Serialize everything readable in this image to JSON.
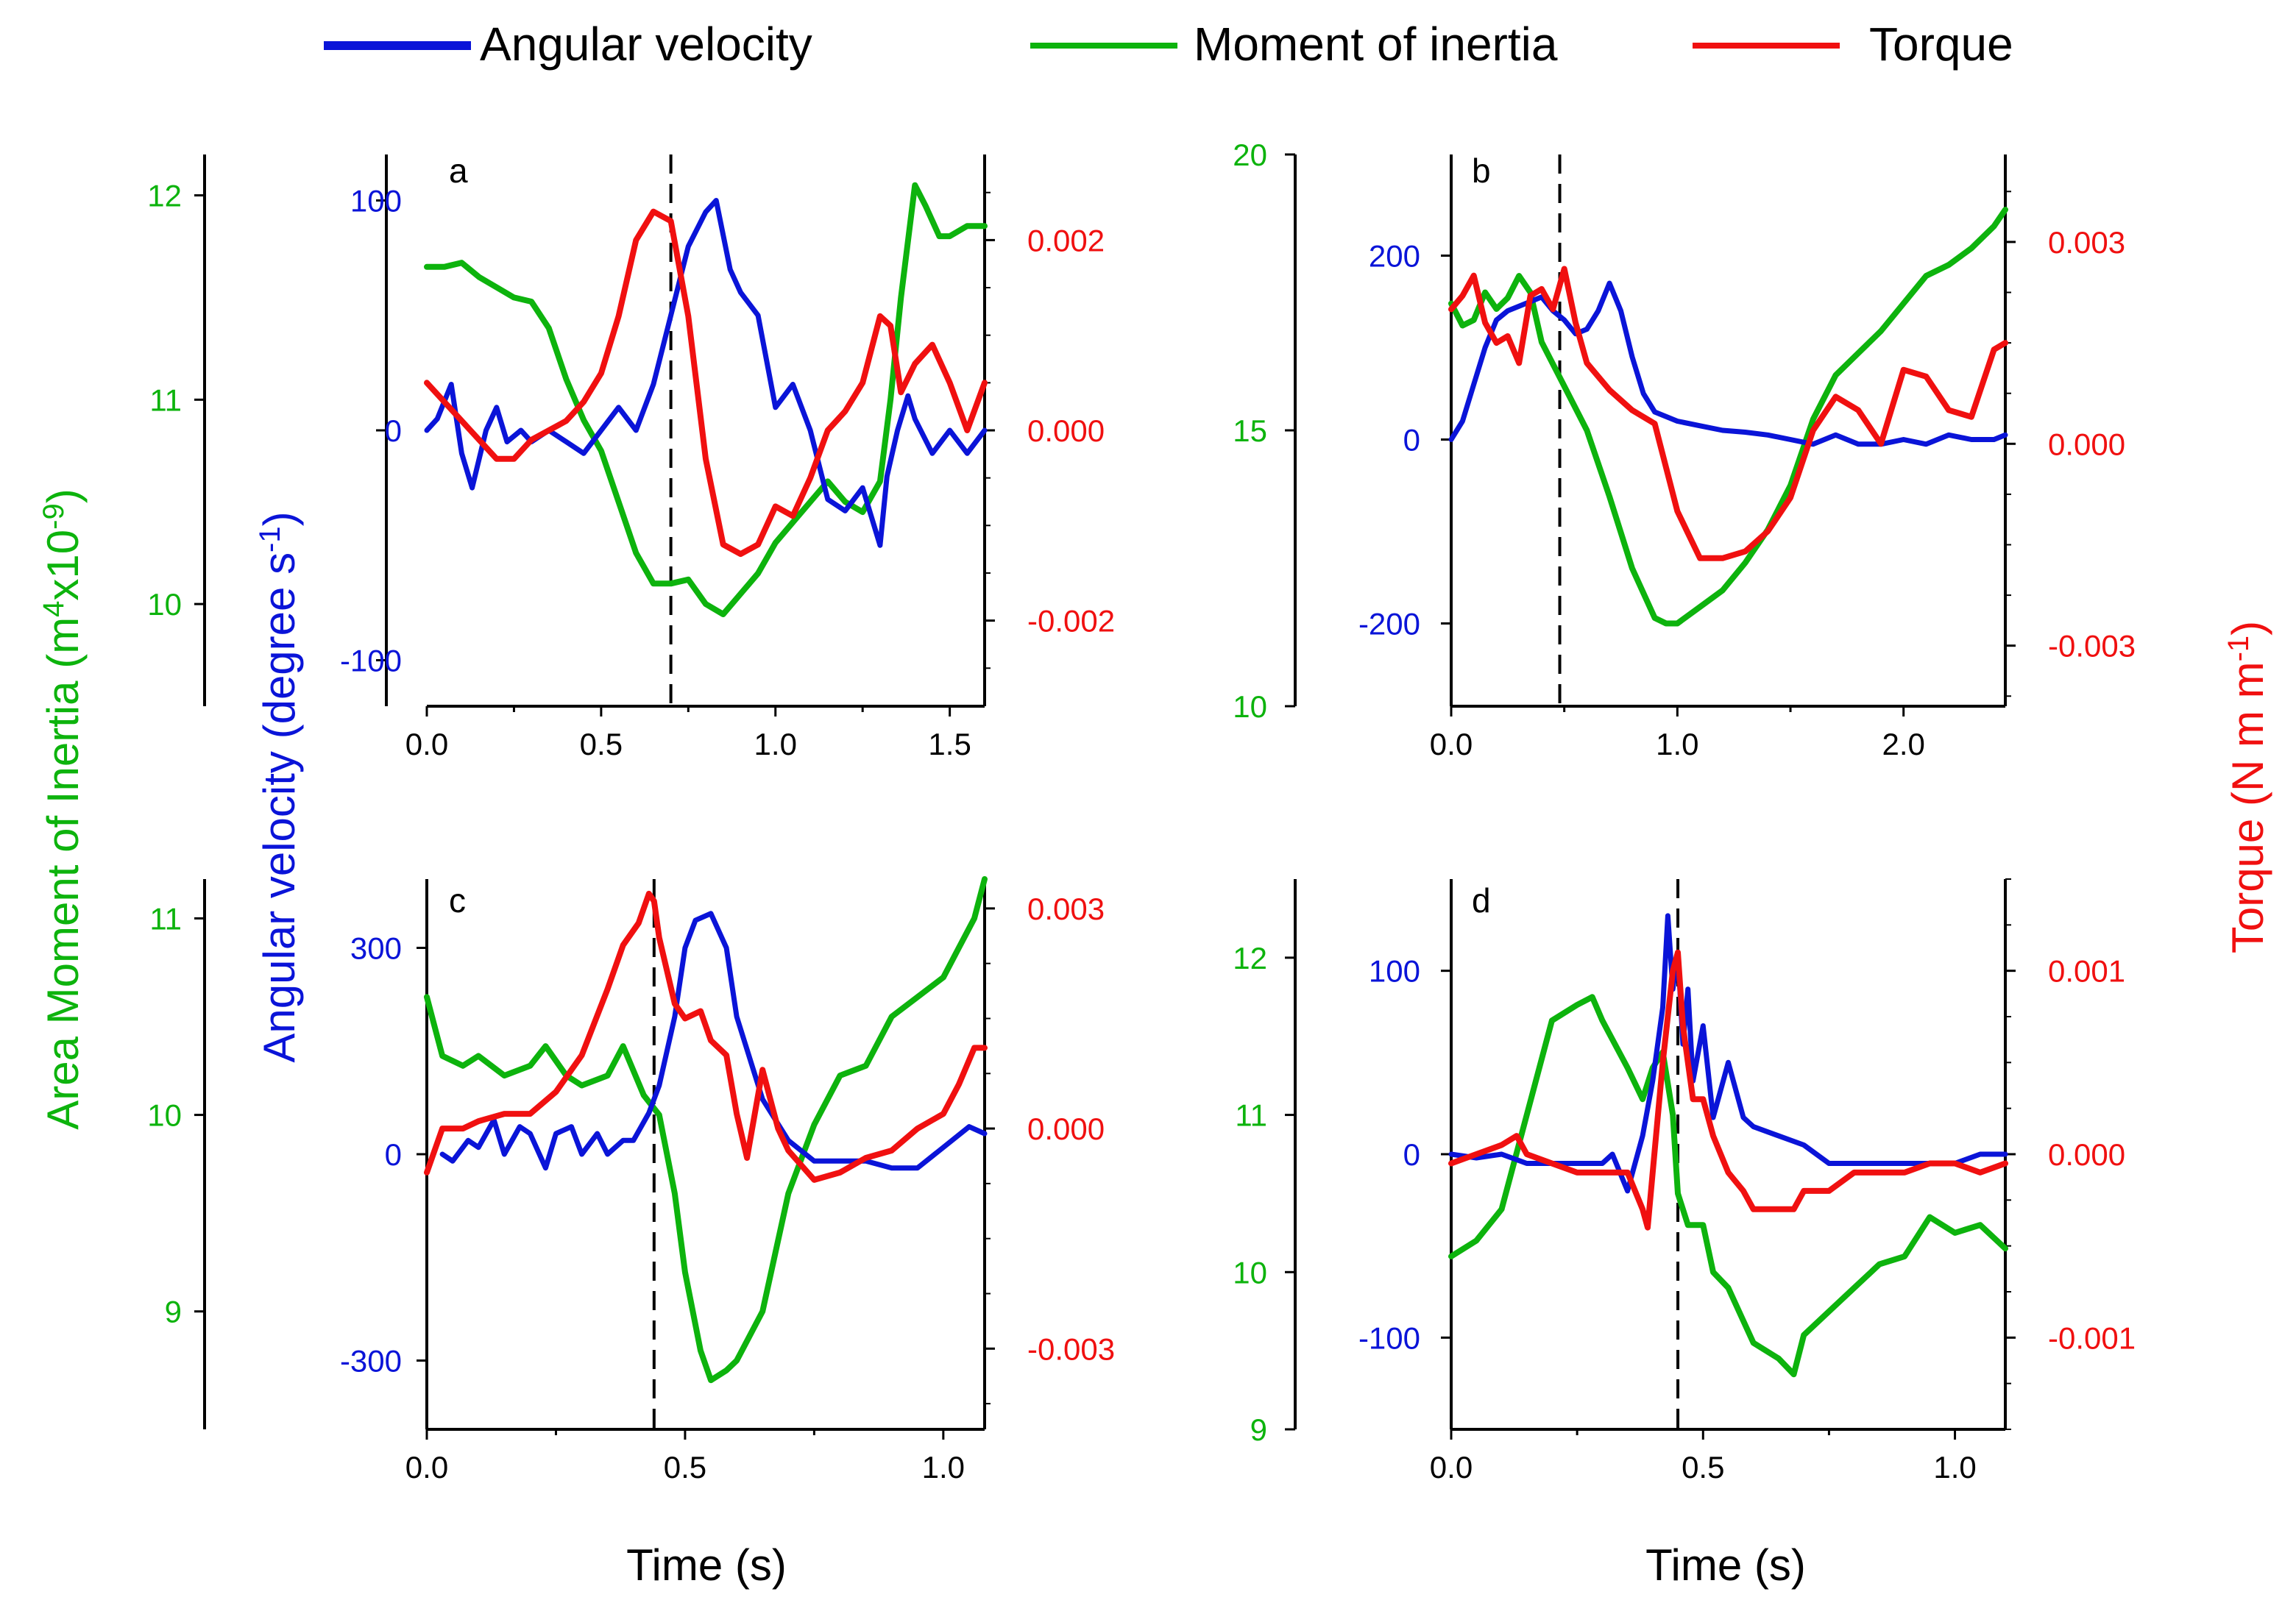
{
  "legend": [
    {
      "label": "Angular velocity",
      "color": "#0a14d8"
    },
    {
      "label": "Moment of inertia",
      "color": "#0db30d"
    },
    {
      "label": "Torque",
      "color": "#f01010"
    }
  ],
  "axis_titles": {
    "left_outer": "Area Moment of Inertia (m4x10-9)",
    "left_outer_parts": {
      "a": "Area Moment of Inertia (m",
      "sup1": "4",
      "b": "x10",
      "sup2": "-9",
      "c": ")"
    },
    "left_inner": "Angular velocity (degree s-1)",
    "left_inner_parts": {
      "a": "Angular velocity (degree s",
      "sup": "-1",
      "c": ")"
    },
    "right": "Torque (N m m-1)",
    "right_parts": {
      "a": "Torque (N m m",
      "sup": "-1",
      "c": ")"
    },
    "x": "Time (s)"
  },
  "colors": {
    "velocity": "#0a14d8",
    "inertia": "#0db30d",
    "torque": "#f01010",
    "axis": "#000000"
  },
  "chart_data": [
    {
      "type": "line",
      "panel": "a",
      "xlim": [
        0,
        1.6
      ],
      "xticks": [
        "0.0",
        "0.5",
        "1.0",
        "1.5"
      ],
      "xtick_values": [
        0,
        0.5,
        1.0,
        1.5
      ],
      "event_time": 0.7,
      "velocity": {
        "label": "Angular velocity",
        "ylim": [
          -120,
          120
        ],
        "ticks": [
          "-100",
          "0",
          "100"
        ],
        "tick_values": [
          -100,
          0,
          100
        ],
        "x": [
          0,
          0.03,
          0.07,
          0.1,
          0.13,
          0.17,
          0.2,
          0.23,
          0.27,
          0.3,
          0.35,
          0.4,
          0.45,
          0.5,
          0.55,
          0.6,
          0.65,
          0.7,
          0.75,
          0.8,
          0.83,
          0.87,
          0.9,
          0.95,
          1.0,
          1.05,
          1.1,
          1.15,
          1.2,
          1.25,
          1.3,
          1.32,
          1.35,
          1.38,
          1.4,
          1.45,
          1.5,
          1.55,
          1.6
        ],
        "y": [
          0,
          5,
          20,
          -10,
          -25,
          0,
          10,
          -5,
          0,
          -5,
          0,
          -5,
          -10,
          0,
          10,
          0,
          20,
          50,
          80,
          95,
          100,
          70,
          60,
          50,
          10,
          20,
          0,
          -30,
          -35,
          -25,
          -50,
          -20,
          0,
          15,
          5,
          -10,
          0,
          -10,
          0
        ]
      },
      "inertia": {
        "label": "Moment of inertia",
        "ylim": [
          9.5,
          12.2
        ],
        "ticks": [
          "10",
          "11",
          "12"
        ],
        "tick_values": [
          10,
          11,
          12
        ],
        "x": [
          0,
          0.05,
          0.1,
          0.15,
          0.2,
          0.25,
          0.3,
          0.35,
          0.4,
          0.45,
          0.5,
          0.55,
          0.6,
          0.65,
          0.7,
          0.75,
          0.8,
          0.85,
          0.9,
          0.95,
          1.0,
          1.05,
          1.1,
          1.15,
          1.2,
          1.25,
          1.3,
          1.33,
          1.36,
          1.4,
          1.43,
          1.47,
          1.5,
          1.55,
          1.6
        ],
        "y": [
          11.65,
          11.65,
          11.67,
          11.6,
          11.55,
          11.5,
          11.48,
          11.35,
          11.1,
          10.9,
          10.75,
          10.5,
          10.25,
          10.1,
          10.1,
          10.12,
          10.0,
          9.95,
          10.05,
          10.15,
          10.3,
          10.4,
          10.5,
          10.6,
          10.5,
          10.45,
          10.6,
          11.0,
          11.5,
          12.05,
          11.95,
          11.8,
          11.8,
          11.85,
          11.85
        ]
      },
      "torque": {
        "label": "Torque",
        "ylim": [
          -0.0029,
          0.0029
        ],
        "ticks": [
          "-0.002",
          "0.000",
          "0.002"
        ],
        "tick_values": [
          -0.002,
          0,
          0.002
        ],
        "x": [
          0,
          0.05,
          0.1,
          0.15,
          0.2,
          0.25,
          0.3,
          0.35,
          0.4,
          0.45,
          0.5,
          0.55,
          0.6,
          0.65,
          0.7,
          0.75,
          0.8,
          0.85,
          0.9,
          0.95,
          1.0,
          1.05,
          1.1,
          1.15,
          1.2,
          1.25,
          1.3,
          1.33,
          1.36,
          1.4,
          1.45,
          1.5,
          1.55,
          1.6
        ],
        "y": [
          0.0005,
          0.0003,
          0.0001,
          -0.0001,
          -0.0003,
          -0.0003,
          -0.0001,
          0.0,
          0.0001,
          0.0003,
          0.0006,
          0.0012,
          0.002,
          0.0023,
          0.0022,
          0.0012,
          -0.0003,
          -0.0012,
          -0.0013,
          -0.0012,
          -0.0008,
          -0.0009,
          -0.0005,
          0.0,
          0.0002,
          0.0005,
          0.0012,
          0.0011,
          0.0004,
          0.0007,
          0.0009,
          0.0005,
          0.0,
          0.0005
        ]
      }
    },
    {
      "type": "line",
      "panel": "b",
      "xlim": [
        0,
        2.45
      ],
      "xticks": [
        "0.0",
        "1.0",
        "2.0"
      ],
      "xtick_values": [
        0,
        1.0,
        2.0
      ],
      "event_time": 0.48,
      "velocity": {
        "label": "Angular velocity",
        "ylim": [
          -290,
          310
        ],
        "ticks": [
          "-200",
          "0",
          "200"
        ],
        "tick_values": [
          -200,
          0,
          200
        ],
        "x": [
          0,
          0.05,
          0.1,
          0.15,
          0.2,
          0.25,
          0.3,
          0.35,
          0.4,
          0.45,
          0.5,
          0.55,
          0.6,
          0.65,
          0.7,
          0.75,
          0.8,
          0.85,
          0.9,
          1.0,
          1.1,
          1.2,
          1.3,
          1.4,
          1.5,
          1.6,
          1.7,
          1.8,
          1.9,
          2.0,
          2.1,
          2.2,
          2.3,
          2.4,
          2.45
        ],
        "y": [
          0,
          20,
          60,
          100,
          130,
          140,
          145,
          150,
          155,
          140,
          130,
          115,
          120,
          140,
          170,
          140,
          90,
          50,
          30,
          20,
          15,
          10,
          8,
          5,
          0,
          -5,
          5,
          -5,
          -5,
          0,
          -5,
          5,
          0,
          0,
          5
        ]
      },
      "inertia": {
        "label": "Moment of inertia",
        "ylim": [
          10,
          20
        ],
        "ticks": [
          "10",
          "15",
          "20"
        ],
        "tick_values": [
          10,
          15,
          20
        ],
        "x": [
          0,
          0.05,
          0.1,
          0.15,
          0.2,
          0.25,
          0.3,
          0.35,
          0.4,
          0.45,
          0.5,
          0.6,
          0.7,
          0.8,
          0.9,
          0.95,
          1.0,
          1.1,
          1.2,
          1.3,
          1.4,
          1.5,
          1.6,
          1.7,
          1.8,
          1.9,
          2.0,
          2.1,
          2.2,
          2.3,
          2.4,
          2.45
        ],
        "y": [
          17.3,
          16.9,
          17.0,
          17.5,
          17.2,
          17.4,
          17.8,
          17.5,
          16.6,
          16.2,
          15.8,
          15.0,
          13.8,
          12.5,
          11.6,
          11.5,
          11.5,
          11.8,
          12.1,
          12.6,
          13.2,
          14.0,
          15.2,
          16.0,
          16.4,
          16.8,
          17.3,
          17.8,
          18.0,
          18.3,
          18.7,
          19.0
        ]
      },
      "torque": {
        "label": "Torque",
        "ylim": [
          -0.0039,
          0.0043
        ],
        "ticks": [
          "-0.003",
          "0.000",
          "0.003"
        ],
        "tick_values": [
          -0.003,
          0,
          0.003
        ],
        "x": [
          0,
          0.05,
          0.1,
          0.15,
          0.2,
          0.25,
          0.3,
          0.35,
          0.4,
          0.45,
          0.5,
          0.55,
          0.6,
          0.7,
          0.8,
          0.9,
          1.0,
          1.1,
          1.2,
          1.3,
          1.4,
          1.5,
          1.6,
          1.7,
          1.8,
          1.9,
          2.0,
          2.1,
          2.2,
          2.3,
          2.4,
          2.45
        ],
        "y": [
          0.002,
          0.0022,
          0.0025,
          0.0018,
          0.0015,
          0.0016,
          0.0012,
          0.0022,
          0.0023,
          0.002,
          0.0026,
          0.0018,
          0.0012,
          0.0008,
          0.0005,
          0.0003,
          -0.001,
          -0.0017,
          -0.0017,
          -0.0016,
          -0.0013,
          -0.0008,
          0.0002,
          0.0007,
          0.0005,
          0.0,
          0.0011,
          0.001,
          0.0005,
          0.0004,
          0.0014,
          0.0015
        ]
      }
    },
    {
      "type": "line",
      "panel": "c",
      "xlim": [
        0,
        1.08
      ],
      "xticks": [
        "0.0",
        "0.5",
        "1.0"
      ],
      "xtick_values": [
        0,
        0.5,
        1.0
      ],
      "event_time": 0.44,
      "velocity": {
        "label": "Angular velocity",
        "ylim": [
          -400,
          400
        ],
        "ticks": [
          "-300",
          "0",
          "300"
        ],
        "tick_values": [
          -300,
          0,
          300
        ],
        "x": [
          0.03,
          0.05,
          0.08,
          0.1,
          0.13,
          0.15,
          0.18,
          0.2,
          0.23,
          0.25,
          0.28,
          0.3,
          0.33,
          0.35,
          0.38,
          0.4,
          0.43,
          0.45,
          0.48,
          0.5,
          0.52,
          0.55,
          0.58,
          0.6,
          0.65,
          0.7,
          0.75,
          0.8,
          0.85,
          0.9,
          0.95,
          1.0,
          1.05,
          1.08
        ],
        "y": [
          0,
          -10,
          20,
          10,
          50,
          0,
          40,
          30,
          -20,
          30,
          40,
          0,
          30,
          0,
          20,
          20,
          60,
          100,
          200,
          300,
          340,
          350,
          300,
          200,
          80,
          20,
          -10,
          -10,
          -10,
          -20,
          -20,
          10,
          40,
          30
        ]
      },
      "inertia": {
        "label": "Moment of inertia",
        "ylim": [
          8.4,
          11.2
        ],
        "ticks": [
          "9",
          "10",
          "11"
        ],
        "tick_values": [
          9,
          10,
          11
        ],
        "x": [
          0,
          0.03,
          0.07,
          0.1,
          0.15,
          0.2,
          0.23,
          0.27,
          0.3,
          0.35,
          0.38,
          0.42,
          0.45,
          0.48,
          0.5,
          0.53,
          0.55,
          0.58,
          0.6,
          0.65,
          0.7,
          0.75,
          0.8,
          0.85,
          0.9,
          0.95,
          1.0,
          1.03,
          1.06,
          1.08
        ],
        "y": [
          10.6,
          10.3,
          10.25,
          10.3,
          10.2,
          10.25,
          10.35,
          10.2,
          10.15,
          10.2,
          10.35,
          10.1,
          10.0,
          9.6,
          9.2,
          8.8,
          8.65,
          8.7,
          8.75,
          9.0,
          9.6,
          9.95,
          10.2,
          10.25,
          10.5,
          10.6,
          10.7,
          10.85,
          11.0,
          11.2
        ]
      },
      "torque": {
        "label": "Torque",
        "ylim": [
          -0.0041,
          0.0034
        ],
        "ticks": [
          "-0.003",
          "0.000",
          "0.003"
        ],
        "tick_values": [
          -0.003,
          0,
          0.003
        ],
        "x": [
          0,
          0.03,
          0.07,
          0.1,
          0.15,
          0.2,
          0.25,
          0.3,
          0.35,
          0.38,
          0.41,
          0.43,
          0.44,
          0.45,
          0.48,
          0.5,
          0.53,
          0.55,
          0.58,
          0.6,
          0.62,
          0.65,
          0.68,
          0.7,
          0.75,
          0.8,
          0.85,
          0.9,
          0.95,
          1.0,
          1.03,
          1.06,
          1.08
        ],
        "y": [
          -0.0006,
          0.0,
          0.0,
          0.0001,
          0.0002,
          0.0002,
          0.0005,
          0.001,
          0.0019,
          0.0025,
          0.0028,
          0.0032,
          0.0031,
          0.0026,
          0.0017,
          0.0015,
          0.0016,
          0.0012,
          0.001,
          0.0002,
          -0.0004,
          0.0008,
          0.0,
          -0.0003,
          -0.0007,
          -0.0006,
          -0.0004,
          -0.0003,
          0.0,
          0.0002,
          0.0006,
          0.0011,
          0.0011
        ]
      }
    },
    {
      "type": "line",
      "panel": "d",
      "xlim": [
        0,
        1.1
      ],
      "xticks": [
        "0.0",
        "0.5",
        "1.0"
      ],
      "xtick_values": [
        0,
        0.5,
        1.0
      ],
      "event_time": 0.45,
      "velocity": {
        "label": "Angular velocity",
        "ylim": [
          -150,
          150
        ],
        "ticks": [
          "-100",
          "0",
          "100"
        ],
        "tick_values": [
          -100,
          0,
          100
        ],
        "x": [
          0,
          0.05,
          0.1,
          0.15,
          0.2,
          0.25,
          0.3,
          0.32,
          0.35,
          0.38,
          0.4,
          0.42,
          0.43,
          0.44,
          0.45,
          0.46,
          0.47,
          0.48,
          0.5,
          0.52,
          0.55,
          0.58,
          0.6,
          0.65,
          0.7,
          0.75,
          0.8,
          0.9,
          1.0,
          1.05,
          1.1
        ],
        "y": [
          0,
          -2,
          0,
          -5,
          -5,
          -5,
          -5,
          0,
          -20,
          10,
          40,
          80,
          130,
          90,
          110,
          60,
          90,
          40,
          70,
          20,
          50,
          20,
          15,
          10,
          5,
          -5,
          -5,
          -5,
          -5,
          0,
          0
        ]
      },
      "inertia": {
        "label": "Moment of inertia",
        "ylim": [
          9,
          12.5
        ],
        "ticks": [
          "9",
          "10",
          "11",
          "12"
        ],
        "tick_values": [
          9,
          10,
          11,
          12
        ],
        "x": [
          0,
          0.05,
          0.1,
          0.15,
          0.2,
          0.25,
          0.28,
          0.3,
          0.35,
          0.38,
          0.4,
          0.42,
          0.44,
          0.45,
          0.47,
          0.5,
          0.52,
          0.55,
          0.6,
          0.65,
          0.68,
          0.7,
          0.75,
          0.8,
          0.85,
          0.9,
          0.95,
          1.0,
          1.05,
          1.1
        ],
        "y": [
          10.1,
          10.2,
          10.4,
          11.0,
          11.6,
          11.7,
          11.75,
          11.6,
          11.3,
          11.1,
          11.3,
          11.4,
          11.0,
          10.5,
          10.3,
          10.3,
          10.0,
          9.9,
          9.55,
          9.45,
          9.35,
          9.6,
          9.75,
          9.9,
          10.05,
          10.1,
          10.35,
          10.25,
          10.3,
          10.15
        ]
      },
      "torque": {
        "label": "Torque",
        "ylim": [
          -0.0015,
          0.0015
        ],
        "ticks": [
          "-0.001",
          "0.000",
          "0.001"
        ],
        "tick_values": [
          -0.001,
          0,
          0.001
        ],
        "x": [
          0,
          0.05,
          0.1,
          0.13,
          0.15,
          0.2,
          0.25,
          0.3,
          0.35,
          0.38,
          0.39,
          0.4,
          0.42,
          0.44,
          0.45,
          0.46,
          0.47,
          0.48,
          0.5,
          0.52,
          0.55,
          0.58,
          0.6,
          0.65,
          0.68,
          0.7,
          0.75,
          0.8,
          0.85,
          0.9,
          0.95,
          1.0,
          1.05,
          1.1
        ],
        "y": [
          -5e-05,
          0.0,
          5e-05,
          0.0001,
          0.0,
          -5e-05,
          -0.0001,
          -0.0001,
          -0.0001,
          -0.0003,
          -0.0004,
          -0.0001,
          0.0005,
          0.001,
          0.0011,
          0.0007,
          0.0005,
          0.0003,
          0.0003,
          0.0001,
          -0.0001,
          -0.0002,
          -0.0003,
          -0.0003,
          -0.0003,
          -0.0002,
          -0.0002,
          -0.0001,
          -0.0001,
          -0.0001,
          -5e-05,
          -5e-05,
          -0.0001,
          -5e-05
        ]
      }
    }
  ]
}
